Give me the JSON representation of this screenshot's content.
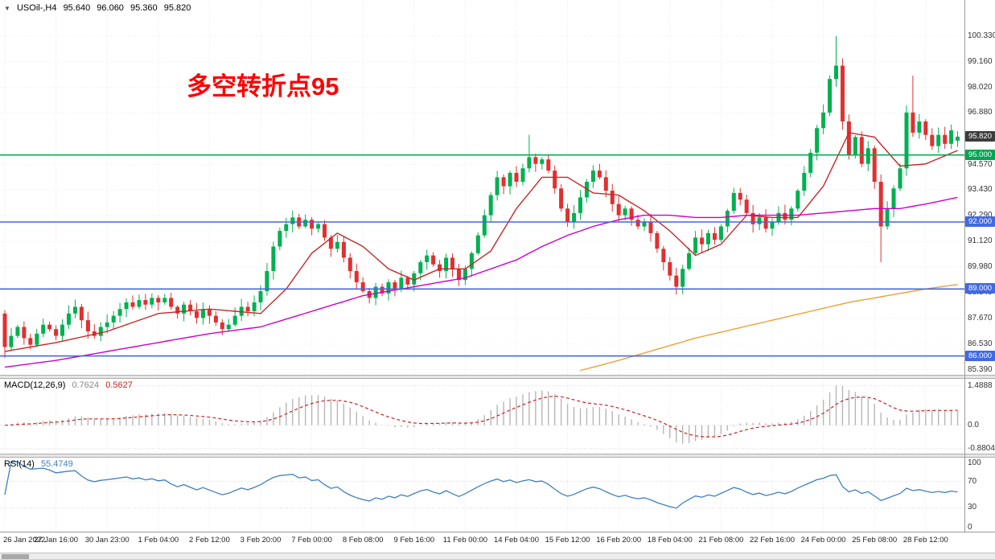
{
  "header": {
    "collapse_marker": "▼",
    "title": "USOil-,H4",
    "open": "95.640",
    "high": "96.060",
    "low": "95.360",
    "close": "95.820"
  },
  "annotation": {
    "text": "多空转折点95",
    "color": "#FF0000"
  },
  "indicators": {
    "macd": {
      "name": "MACD(12,26,9)",
      "value_main": "0.7624",
      "value_signal": "0.5627"
    },
    "rsi": {
      "name": "RSI(14)",
      "value": "55.4749"
    }
  },
  "price_axis": {
    "ticks": [
      "100.330",
      "99.160",
      "98.020",
      "96.880",
      "94.570",
      "93.430",
      "92.290",
      "91.120",
      "89.980",
      "88.840",
      "87.670",
      "86.530",
      "85.390"
    ],
    "badges": [
      {
        "label": "95.820",
        "price": 95.82,
        "color": "#3c3c3c",
        "name": "current-price-badge"
      },
      {
        "label": "95.000",
        "price": 95.0,
        "color": "#00a651",
        "name": "level-95-badge"
      },
      {
        "label": "92.000",
        "price": 92.0,
        "color": "#4169e1",
        "name": "level-92-badge"
      },
      {
        "label": "89.000",
        "price": 89.0,
        "color": "#4169e1",
        "name": "level-89-badge"
      },
      {
        "label": "86.000",
        "price": 86.0,
        "color": "#4169e1",
        "name": "level-86-badge"
      }
    ]
  },
  "time_axis": [
    "26 Jan 2022",
    "27 Jan 16:00",
    "30 Jan 23:00",
    "1 Feb 04:00",
    "2 Feb 12:00",
    "3 Feb 20:00",
    "7 Feb 00:00",
    "8 Feb 08:00",
    "9 Feb 16:00",
    "11 Feb 00:00",
    "14 Feb 04:00",
    "15 Feb 12:00",
    "16 Feb 20:00",
    "18 Feb 04:00",
    "21 Feb 08:00",
    "22 Feb 16:00",
    "24 Feb 00:00",
    "25 Feb 08:00",
    "28 Feb 12:00"
  ],
  "chart_data": [
    {
      "type": "candlestick",
      "title": "USOil- H4",
      "ylim": [
        85.3,
        101.65
      ],
      "colors": {
        "up": "#00b050",
        "down": "#e03030"
      },
      "current": {
        "open": 95.64,
        "high": 96.06,
        "low": 95.36,
        "close": 95.82
      },
      "closes": [
        86.4,
        86.9,
        87.3,
        86.8,
        86.5,
        87.0,
        87.4,
        87.2,
        86.9,
        87.4,
        87.9,
        88.2,
        87.6,
        87.1,
        86.9,
        87.3,
        87.5,
        87.8,
        88.1,
        88.4,
        88.2,
        88.5,
        88.3,
        88.6,
        88.4,
        88.6,
        88.2,
        87.9,
        88.3,
        88.0,
        87.7,
        88.1,
        87.8,
        87.5,
        87.2,
        87.4,
        87.8,
        88.2,
        88.0,
        88.4,
        88.9,
        89.8,
        90.9,
        91.6,
        91.9,
        92.2,
        91.8,
        92.1,
        91.7,
        91.9,
        91.3,
        90.8,
        91.1,
        90.4,
        89.8,
        89.3,
        88.9,
        88.6,
        89.1,
        88.8,
        89.3,
        89.0,
        89.5,
        89.2,
        89.7,
        90.2,
        90.5,
        90.1,
        89.8,
        90.4,
        89.9,
        89.4,
        89.9,
        90.6,
        91.4,
        92.3,
        93.2,
        94.0,
        93.6,
        94.2,
        93.8,
        94.4,
        94.9,
        94.6,
        94.8,
        94.3,
        93.5,
        92.6,
        92.0,
        92.4,
        93.1,
        93.8,
        94.3,
        94.0,
        93.4,
        92.8,
        92.3,
        92.6,
        92.1,
        91.8,
        92.0,
        91.5,
        90.8,
        90.2,
        89.6,
        89.1,
        89.9,
        90.6,
        91.3,
        91.0,
        91.5,
        91.2,
        91.8,
        92.5,
        93.3,
        93.0,
        92.4,
        91.9,
        92.2,
        91.7,
        92.0,
        92.4,
        92.1,
        92.6,
        93.4,
        94.2,
        95.1,
        96.2,
        96.9,
        98.4,
        99.0,
        96.5,
        95.0,
        95.8,
        94.6,
        95.3,
        93.8,
        91.8,
        92.6,
        93.5,
        94.4,
        96.9,
        96.0,
        96.5,
        95.9,
        95.4,
        95.9,
        95.5,
        96.1,
        95.82
      ],
      "overrides": {
        "0": {
          "o": 87.9,
          "h": 88.05,
          "l": 85.9
        },
        "82": {
          "h": 95.9
        },
        "105": {
          "l": 88.75
        },
        "130": {
          "h": 100.33
        },
        "137": {
          "l": 90.2
        },
        "142": {
          "h": 98.55
        },
        "149": {
          "o": 95.64,
          "h": 96.06,
          "l": 95.36,
          "c": 95.82
        }
      },
      "hlines": [
        {
          "price": 95.0,
          "color": "#00b050",
          "label": "95.000"
        },
        {
          "price": 92.0,
          "color": "#4169e1",
          "label": "92.000"
        },
        {
          "price": 89.0,
          "color": "#4169e1",
          "label": "89.000"
        },
        {
          "price": 86.0,
          "color": "#4169e1",
          "label": "86.000"
        }
      ],
      "ma_lines": [
        {
          "name": "ma-fast-red",
          "color": "#c62828",
          "points": [
            [
              0,
              86.2
            ],
            [
              8,
              86.6
            ],
            [
              16,
              87.1
            ],
            [
              24,
              87.9
            ],
            [
              32,
              88.1
            ],
            [
              40,
              87.9
            ],
            [
              44,
              89.0
            ],
            [
              48,
              90.6
            ],
            [
              52,
              91.5
            ],
            [
              56,
              90.9
            ],
            [
              60,
              89.9
            ],
            [
              64,
              89.4
            ],
            [
              68,
              89.9
            ],
            [
              72,
              89.9
            ],
            [
              76,
              90.7
            ],
            [
              80,
              92.6
            ],
            [
              84,
              94.0
            ],
            [
              88,
              94.0
            ],
            [
              92,
              93.3
            ],
            [
              96,
              93.2
            ],
            [
              100,
              92.5
            ],
            [
              104,
              91.6
            ],
            [
              108,
              90.5
            ],
            [
              112,
              91.0
            ],
            [
              116,
              92.3
            ],
            [
              120,
              92.2
            ],
            [
              124,
              92.2
            ],
            [
              128,
              93.6
            ],
            [
              132,
              96.0
            ],
            [
              136,
              95.8
            ],
            [
              140,
              94.5
            ],
            [
              144,
              94.6
            ],
            [
              149,
              95.2
            ]
          ]
        },
        {
          "name": "ma-mid-magenta",
          "color": "#cc00cc",
          "points": [
            [
              0,
              85.5
            ],
            [
              8,
              85.8
            ],
            [
              16,
              86.2
            ],
            [
              24,
              86.6
            ],
            [
              32,
              87.0
            ],
            [
              40,
              87.3
            ],
            [
              48,
              88.0
            ],
            [
              56,
              88.7
            ],
            [
              64,
              89.1
            ],
            [
              72,
              89.5
            ],
            [
              80,
              90.3
            ],
            [
              84,
              90.9
            ],
            [
              88,
              91.4
            ],
            [
              92,
              91.8
            ],
            [
              96,
              92.1
            ],
            [
              100,
              92.3
            ],
            [
              104,
              92.3
            ],
            [
              108,
              92.2
            ],
            [
              112,
              92.2
            ],
            [
              116,
              92.3
            ],
            [
              120,
              92.3
            ],
            [
              124,
              92.3
            ],
            [
              128,
              92.4
            ],
            [
              132,
              92.5
            ],
            [
              136,
              92.6
            ],
            [
              140,
              92.6
            ],
            [
              144,
              92.8
            ],
            [
              149,
              93.1
            ]
          ]
        },
        {
          "name": "ma-slow-orange",
          "color": "#efa033",
          "points": [
            [
              90,
              85.35
            ],
            [
              96,
              85.8
            ],
            [
              102,
              86.3
            ],
            [
              108,
              86.8
            ],
            [
              114,
              87.2
            ],
            [
              120,
              87.6
            ],
            [
              126,
              88.0
            ],
            [
              132,
              88.4
            ],
            [
              138,
              88.7
            ],
            [
              144,
              89.0
            ],
            [
              149,
              89.2
            ]
          ]
        }
      ]
    },
    {
      "type": "macd",
      "params": [
        12,
        26,
        9
      ],
      "display_values": {
        "macd": 0.7624,
        "signal": 0.5627
      },
      "ylim": [
        -0.95,
        1.6
      ],
      "colors": {
        "histogram": "#b6b6b6",
        "signal": "#cc2222"
      },
      "ticks": [
        {
          "label": "1.4888",
          "value": 1.4888
        },
        {
          "label": "0.0",
          "value": 0
        },
        {
          "label": "-0.8804",
          "value": -0.8804
        }
      ],
      "derived_from": "closes"
    },
    {
      "type": "rsi",
      "period": 14,
      "current": 55.4749,
      "ylim": [
        0,
        100
      ],
      "levels": [
        70,
        30
      ],
      "color": "#3e7fc1",
      "ticks": [
        {
          "label": "100",
          "value": 100
        },
        {
          "label": "70",
          "value": 70
        },
        {
          "label": "30",
          "value": 30
        },
        {
          "label": "0",
          "value": 0
        }
      ],
      "derived_from": "closes"
    }
  ]
}
